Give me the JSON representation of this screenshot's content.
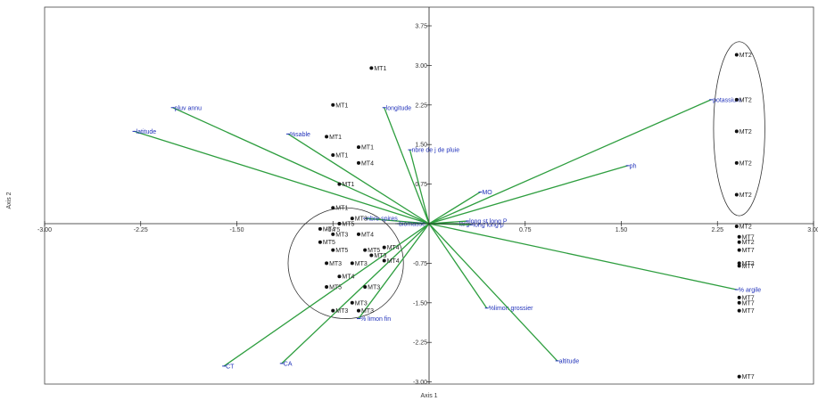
{
  "chart_data": {
    "type": "scatter",
    "subtype": "pca-biplot",
    "xlabel": "Axis 1",
    "ylabel": "Axis 2",
    "xlim": [
      -3.0,
      3.0
    ],
    "ylim": [
      -3.0,
      4.0
    ],
    "x_ticks": [
      -3.0,
      -2.25,
      -1.5,
      -0.75,
      0.75,
      1.5,
      2.25,
      3.0
    ],
    "x_tick_labels": [
      "-3.00",
      "-2.25",
      "-1.50",
      "-0.75",
      "0.75",
      "1.50",
      "2.25",
      "3.00"
    ],
    "y_ticks": [
      -3.0,
      -2.25,
      -1.5,
      -0.75,
      0.75,
      1.5,
      2.25,
      3.0,
      3.75
    ],
    "y_tick_labels": [
      "-3.00",
      "-2.25",
      "-1.50",
      "-0.75",
      "0.75",
      "1.50",
      "2.25",
      "3.00",
      "3.75"
    ],
    "colors": {
      "vector": "#2e9e3f",
      "label": "#2233bb",
      "point": "#111111",
      "axis": "#222222"
    },
    "vectors": [
      {
        "name": "pluv annu",
        "x": -2.0,
        "y": 2.2
      },
      {
        "name": "latitude",
        "x": -2.3,
        "y": 1.75
      },
      {
        "name": "%sable",
        "x": -1.1,
        "y": 1.7
      },
      {
        "name": "longitude",
        "x": -0.35,
        "y": 2.2
      },
      {
        "name": "nbre de j de pluie",
        "x": -0.15,
        "y": 1.4
      },
      {
        "name": "potassium",
        "x": 2.2,
        "y": 2.35
      },
      {
        "name": "ph",
        "x": 1.55,
        "y": 1.1
      },
      {
        "name": "MO",
        "x": 0.4,
        "y": 0.6
      },
      {
        "name": "nbre spires",
        "x": -0.5,
        "y": 0.1
      },
      {
        "name": "biomasse",
        "x": -0.25,
        "y": 0.0
      },
      {
        "name": "long st long P",
        "x": 0.3,
        "y": 0.05
      },
      {
        "name": "larg",
        "x": 0.22,
        "y": 0.0
      },
      {
        "name": "long long p",
        "x": 0.33,
        "y": -0.02
      },
      {
        "name": "% argile",
        "x": 2.4,
        "y": -1.25
      },
      {
        "name": "%limon grossier",
        "x": 0.45,
        "y": -1.6
      },
      {
        "name": "altitude",
        "x": 1.0,
        "y": -2.6
      },
      {
        "name": "% limon fin",
        "x": -0.55,
        "y": -1.8
      },
      {
        "name": "CA",
        "x": -1.15,
        "y": -2.65
      },
      {
        "name": "CT",
        "x": -1.6,
        "y": -2.7
      }
    ],
    "points": [
      {
        "label": "MT1",
        "x": -0.45,
        "y": 2.95
      },
      {
        "label": "MT1",
        "x": -0.75,
        "y": 2.25
      },
      {
        "label": "MT1",
        "x": -0.8,
        "y": 1.65
      },
      {
        "label": "MT1",
        "x": -0.55,
        "y": 1.45
      },
      {
        "label": "MT1",
        "x": -0.75,
        "y": 1.3
      },
      {
        "label": "MT1",
        "x": -0.7,
        "y": 0.75
      },
      {
        "label": "MT1",
        "x": -0.75,
        "y": 0.3
      },
      {
        "label": "MT4",
        "x": -0.55,
        "y": 1.15
      },
      {
        "label": "MT2",
        "x": 2.4,
        "y": 3.2
      },
      {
        "label": "MT2",
        "x": 2.4,
        "y": 2.35
      },
      {
        "label": "MT2",
        "x": 2.4,
        "y": 1.75
      },
      {
        "label": "MT2",
        "x": 2.4,
        "y": 1.15
      },
      {
        "label": "MT2",
        "x": 2.4,
        "y": 0.55
      },
      {
        "label": "MT2",
        "x": 2.4,
        "y": -0.05
      },
      {
        "label": "MT7",
        "x": 2.42,
        "y": -0.25
      },
      {
        "label": "MT2",
        "x": 2.42,
        "y": -0.35
      },
      {
        "label": "MT7",
        "x": 2.42,
        "y": -0.5
      },
      {
        "label": "MT7",
        "x": 2.42,
        "y": -0.8
      },
      {
        "label": "MT2",
        "x": 2.42,
        "y": -0.75
      },
      {
        "label": "MT7",
        "x": 2.42,
        "y": -1.4
      },
      {
        "label": "MT7",
        "x": 2.42,
        "y": -1.5
      },
      {
        "label": "MT7",
        "x": 2.42,
        "y": -1.65
      },
      {
        "label": "MT7",
        "x": 2.42,
        "y": -2.9
      },
      {
        "label": "MT3",
        "x": -0.6,
        "y": 0.1
      },
      {
        "label": "MT5",
        "x": -0.7,
        "y": 0.0
      },
      {
        "label": "MT4",
        "x": -0.85,
        "y": -0.1
      },
      {
        "label": "MT3",
        "x": -0.75,
        "y": -0.2
      },
      {
        "label": "MT4",
        "x": -0.55,
        "y": -0.2
      },
      {
        "label": "MT5",
        "x": -0.85,
        "y": -0.35
      },
      {
        "label": "MT5",
        "x": -0.75,
        "y": -0.5
      },
      {
        "label": "MT5",
        "x": -0.5,
        "y": -0.5
      },
      {
        "label": "MT4",
        "x": -0.35,
        "y": -0.45
      },
      {
        "label": "MT3",
        "x": -0.45,
        "y": -0.6
      },
      {
        "label": "MT4",
        "x": -0.35,
        "y": -0.7
      },
      {
        "label": "MT3",
        "x": -0.8,
        "y": -0.75
      },
      {
        "label": "MT3",
        "x": -0.6,
        "y": -0.75
      },
      {
        "label": "MT4",
        "x": -0.7,
        "y": -1.0
      },
      {
        "label": "MT5",
        "x": -0.8,
        "y": -1.2
      },
      {
        "label": "MT3",
        "x": -0.5,
        "y": -1.2
      },
      {
        "label": "MT3",
        "x": -0.6,
        "y": -1.5
      },
      {
        "label": "MT3",
        "x": -0.75,
        "y": -1.65
      },
      {
        "label": "MT3",
        "x": -0.55,
        "y": -1.65
      }
    ]
  }
}
